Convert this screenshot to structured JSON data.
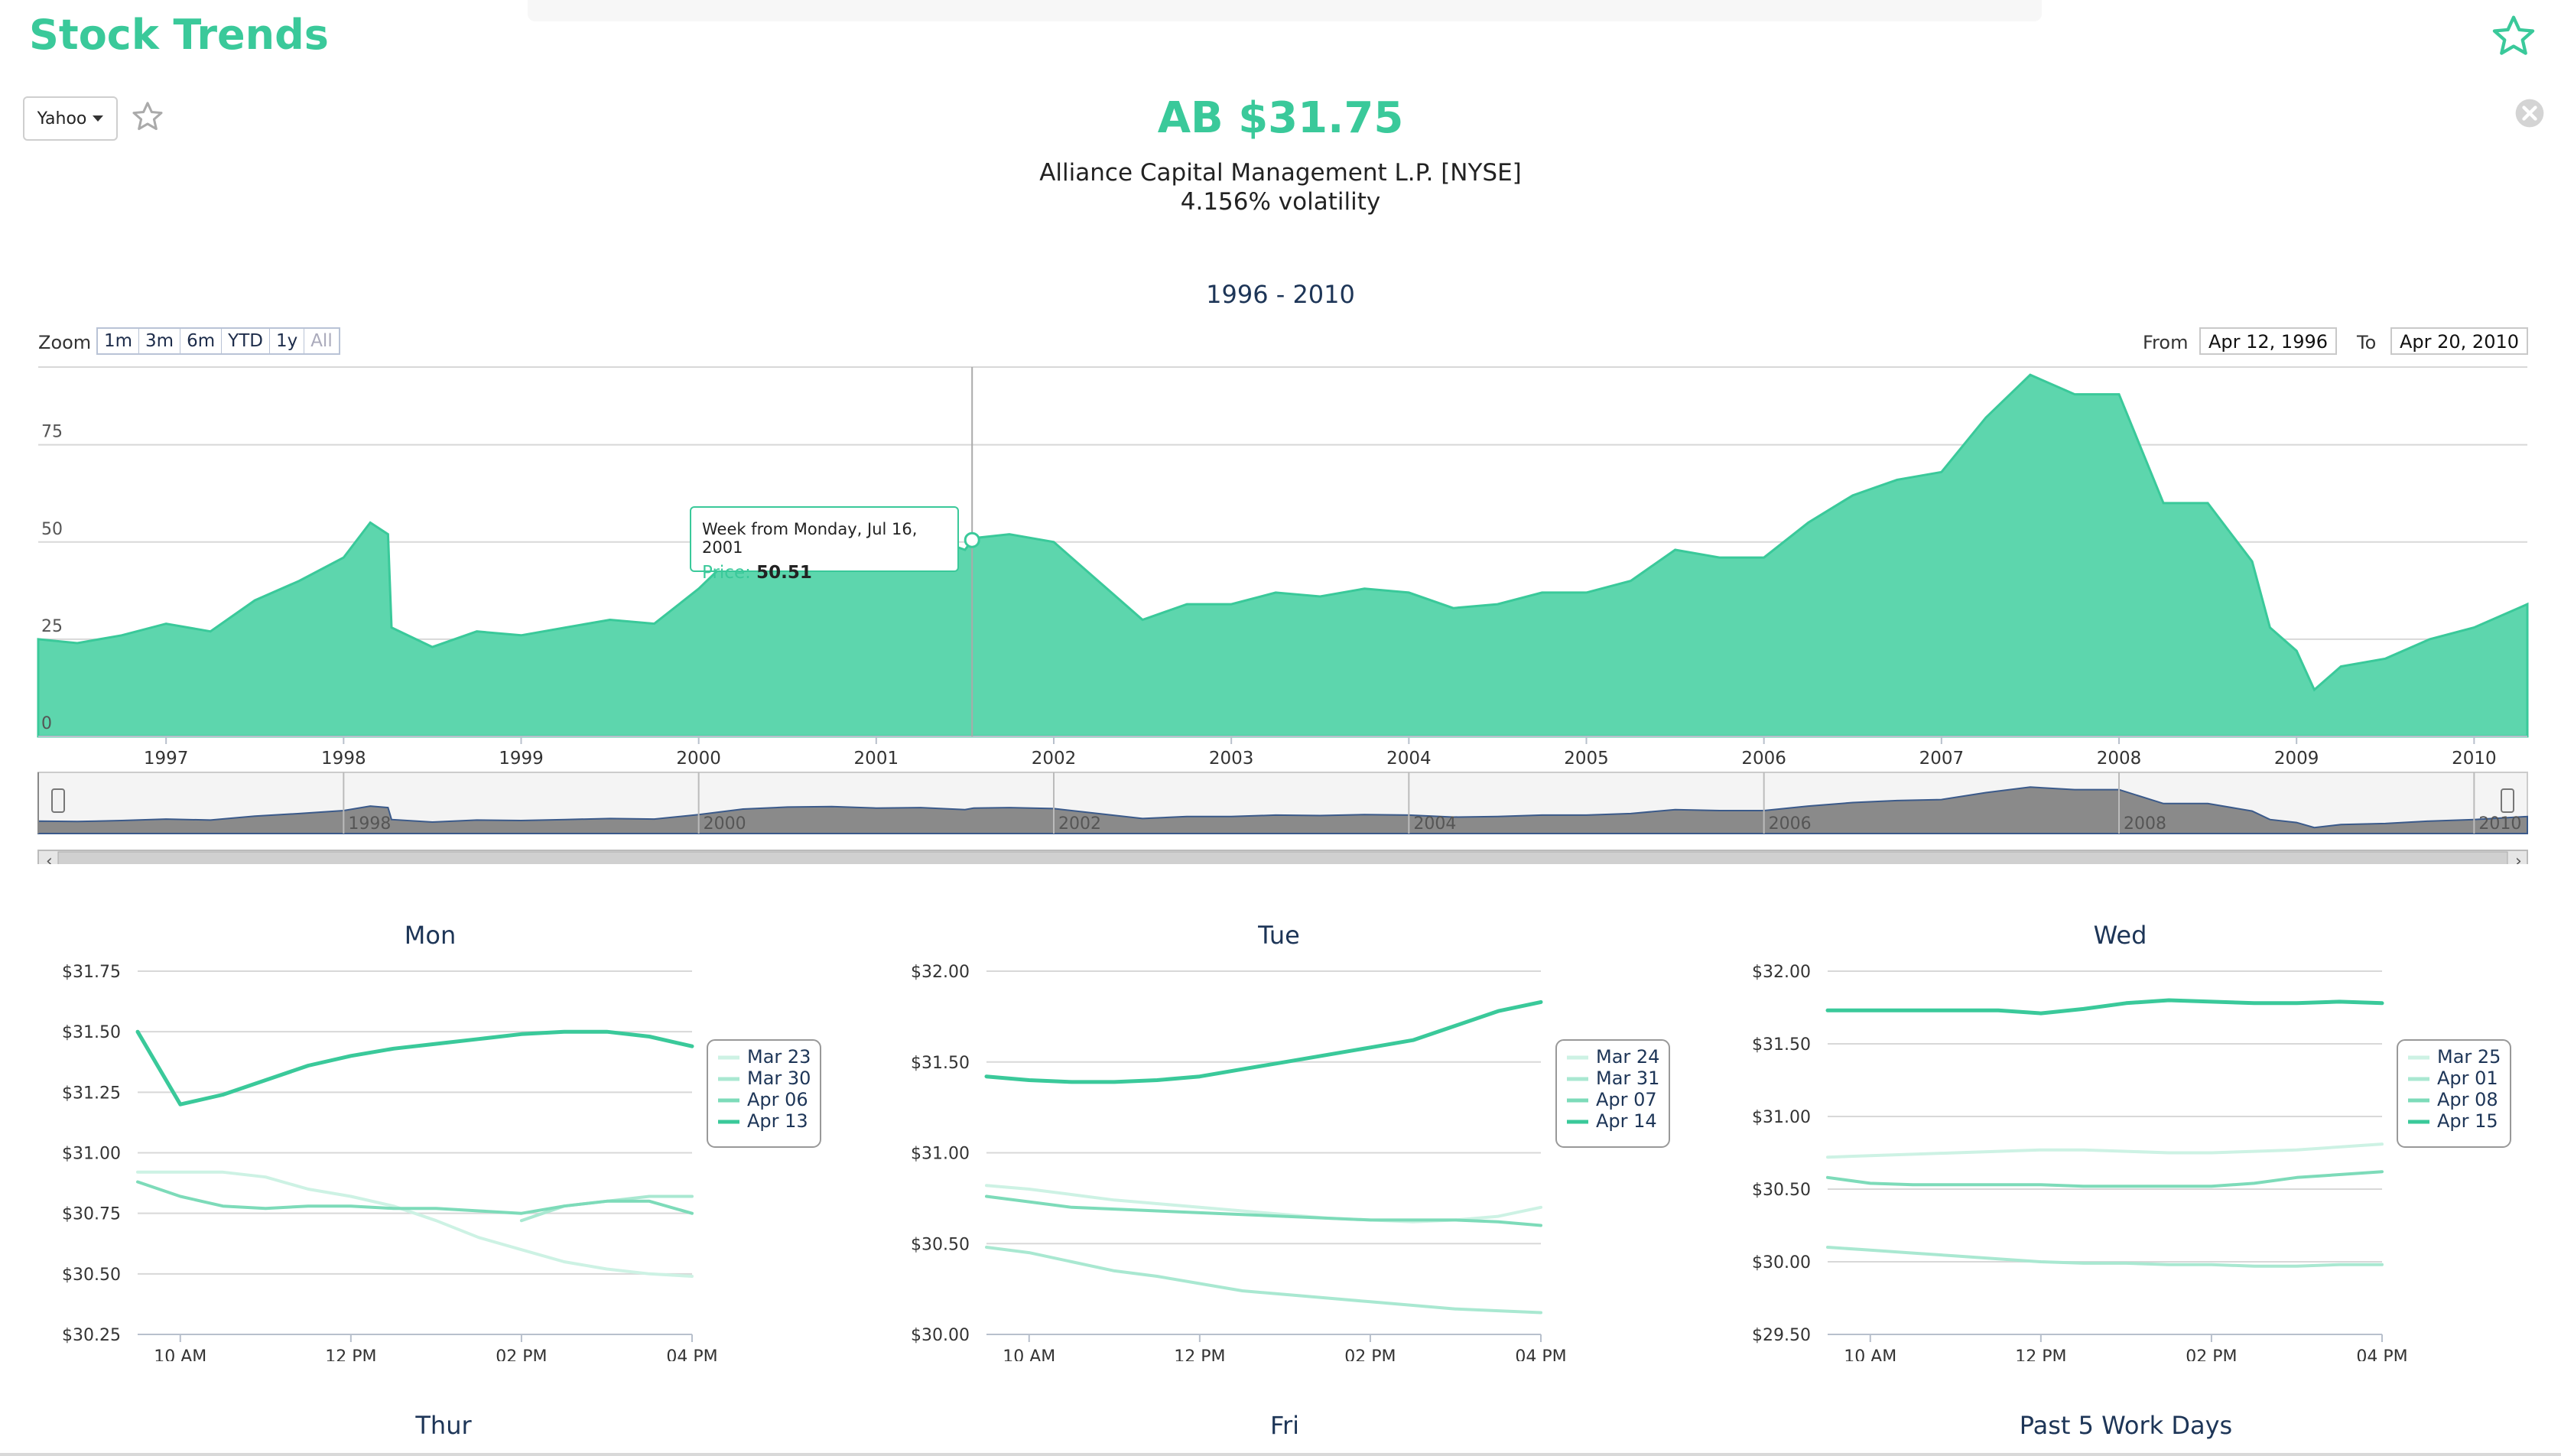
{
  "app": {
    "title": "Stock Trends"
  },
  "source_selector": {
    "label": "Yahoo"
  },
  "stock": {
    "headline": "AB $31.75",
    "name": "Alliance Capital Management L.P. [NYSE]",
    "volatility": "4.156% volatility"
  },
  "range_selector": {
    "zoom_label": "Zoom",
    "buttons": [
      "1m",
      "3m",
      "6m",
      "YTD",
      "1y",
      "All"
    ],
    "from_label": "From",
    "from_value": "Apr 12, 1996",
    "to_label": "To",
    "to_value": "Apr 20, 2010"
  },
  "tooltip": {
    "date": "Week from Monday, Jul 16, 2001",
    "price_label": "Price:",
    "price_value": "50.51"
  },
  "colors": {
    "accent": "#3ac99a",
    "area_fill": "#5dd6ad",
    "navigator_fill": "#8a8a8a",
    "navigator_line": "#3b5a8a"
  },
  "icons": {
    "favorite": "star-outline-icon",
    "close": "close-circle-icon",
    "dropdown": "caret-down-icon"
  },
  "chart_data": [
    {
      "type": "area",
      "title": "1996 - 2010",
      "x_ticks": [
        "1997",
        "1998",
        "1999",
        "2000",
        "2001",
        "2002",
        "2003",
        "2004",
        "2005",
        "2006",
        "2007",
        "2008",
        "2009",
        "2010"
      ],
      "y_ticks": [
        0,
        25,
        50,
        75
      ],
      "xlim": [
        1996.28,
        2010.3
      ],
      "ylim": [
        0,
        95
      ],
      "series": [
        {
          "x": [
            1996.28,
            1996.5,
            1996.75,
            1997.0,
            1997.25,
            1997.5,
            1997.75,
            1998.0,
            1998.15,
            1998.25,
            1998.27,
            1998.5,
            1998.75,
            1999.0,
            1999.25,
            1999.5,
            1999.75,
            2000.0,
            2000.25,
            2000.5,
            2000.75,
            2001.0,
            2001.25,
            2001.5,
            2001.55,
            2001.75,
            2002.0,
            2002.25,
            2002.5,
            2002.75,
            2003.0,
            2003.25,
            2003.5,
            2003.75,
            2004.0,
            2004.25,
            2004.5,
            2004.75,
            2005.0,
            2005.25,
            2005.5,
            2005.75,
            2006.0,
            2006.25,
            2006.5,
            2006.75,
            2007.0,
            2007.25,
            2007.5,
            2007.75,
            2008.0,
            2008.25,
            2008.5,
            2008.75,
            2008.85,
            2009.0,
            2009.1,
            2009.25,
            2009.5,
            2009.75,
            2010.0,
            2010.3
          ],
          "y": [
            25,
            24,
            26,
            29,
            27,
            35,
            40,
            46,
            55,
            52,
            28,
            23,
            27,
            26,
            28,
            30,
            29,
            38,
            49,
            53,
            54,
            51,
            52,
            48,
            51,
            52,
            50,
            40,
            30,
            34,
            34,
            37,
            36,
            38,
            37,
            33,
            34,
            37,
            37,
            40,
            48,
            46,
            46,
            55,
            62,
            66,
            68,
            82,
            93,
            88,
            88,
            60,
            60,
            45,
            28,
            22,
            12,
            18,
            20,
            25,
            28,
            34
          ]
        }
      ]
    },
    {
      "type": "area",
      "title": "",
      "role": "navigator",
      "x_ticks": [
        "1998",
        "2000",
        "2002",
        "2004",
        "2006",
        "2008",
        "2010"
      ],
      "xlim": [
        1996.28,
        2010.3
      ],
      "ylim": [
        0,
        95
      ]
    },
    {
      "type": "line",
      "title": "Mon",
      "x_ticks": [
        "10 AM",
        "12 PM",
        "02 PM",
        "04 PM"
      ],
      "x_range": [
        9.5,
        16.0
      ],
      "y_ticks": [
        "$31.75",
        "$31.50",
        "$31.25",
        "$31.00",
        "$30.75",
        "$30.50",
        "$30.25"
      ],
      "ylim": [
        30.25,
        31.75
      ],
      "x": [
        9.5,
        10,
        10.5,
        11,
        11.5,
        12,
        12.5,
        13,
        13.5,
        14,
        14.5,
        15,
        15.5,
        16
      ],
      "series": [
        {
          "name": "Mar 23",
          "values": [
            30.92,
            30.92,
            30.92,
            30.9,
            30.85,
            30.82,
            30.78,
            30.72,
            30.65,
            30.6,
            30.55,
            30.52,
            30.5,
            30.49
          ]
        },
        {
          "name": "Mar 30",
          "values": [
            null,
            null,
            null,
            null,
            null,
            null,
            null,
            null,
            null,
            30.72,
            30.78,
            30.8,
            30.82,
            30.82
          ]
        },
        {
          "name": "Apr 06",
          "values": [
            30.88,
            30.82,
            30.78,
            30.77,
            30.78,
            30.78,
            30.77,
            30.77,
            30.76,
            30.75,
            30.78,
            30.8,
            30.8,
            30.75
          ]
        },
        {
          "name": "Apr 13",
          "values": [
            31.5,
            31.2,
            31.24,
            31.3,
            31.36,
            31.4,
            31.43,
            31.45,
            31.47,
            31.49,
            31.5,
            31.5,
            31.48,
            31.44
          ]
        }
      ]
    },
    {
      "type": "line",
      "title": "Tue",
      "x_ticks": [
        "10 AM",
        "12 PM",
        "02 PM",
        "04 PM"
      ],
      "x_range": [
        9.5,
        16.0
      ],
      "y_ticks": [
        "$32.00",
        "$31.50",
        "$31.00",
        "$30.50",
        "$30.00"
      ],
      "ylim": [
        30.0,
        32.0
      ],
      "x": [
        9.5,
        10,
        10.5,
        11,
        11.5,
        12,
        12.5,
        13,
        13.5,
        14,
        14.5,
        15,
        15.5,
        16
      ],
      "series": [
        {
          "name": "Mar 24",
          "values": [
            30.82,
            30.8,
            30.77,
            30.74,
            30.72,
            30.7,
            30.68,
            30.66,
            30.64,
            30.63,
            30.62,
            30.63,
            30.65,
            30.7
          ]
        },
        {
          "name": "Mar 31",
          "values": [
            30.48,
            30.45,
            30.4,
            30.35,
            30.32,
            30.28,
            30.24,
            30.22,
            30.2,
            30.18,
            30.16,
            30.14,
            30.13,
            30.12
          ]
        },
        {
          "name": "Apr 07",
          "values": [
            30.76,
            30.73,
            30.7,
            30.69,
            30.68,
            30.67,
            30.66,
            30.65,
            30.64,
            30.63,
            30.63,
            30.63,
            30.62,
            30.6
          ]
        },
        {
          "name": "Apr 14",
          "values": [
            31.42,
            31.4,
            31.39,
            31.39,
            31.4,
            31.42,
            31.46,
            31.5,
            31.54,
            31.58,
            31.62,
            31.7,
            31.78,
            31.83
          ]
        }
      ]
    },
    {
      "type": "line",
      "title": "Wed",
      "x_ticks": [
        "10 AM",
        "12 PM",
        "02 PM",
        "04 PM"
      ],
      "x_range": [
        9.5,
        16.0
      ],
      "y_ticks": [
        "$32.00",
        "$31.50",
        "$31.00",
        "$30.50",
        "$30.00",
        "$29.50"
      ],
      "ylim": [
        29.5,
        32.0
      ],
      "x": [
        9.5,
        10,
        10.5,
        11,
        11.5,
        12,
        12.5,
        13,
        13.5,
        14,
        14.5,
        15,
        15.5,
        16
      ],
      "series": [
        {
          "name": "Mar 25",
          "values": [
            30.72,
            30.73,
            30.74,
            30.75,
            30.76,
            30.77,
            30.77,
            30.76,
            30.75,
            30.75,
            30.76,
            30.77,
            30.79,
            30.81
          ]
        },
        {
          "name": "Apr 01",
          "values": [
            30.1,
            30.08,
            30.06,
            30.04,
            30.02,
            30.0,
            29.99,
            29.99,
            29.98,
            29.98,
            29.97,
            29.97,
            29.98,
            29.98
          ]
        },
        {
          "name": "Apr 08",
          "values": [
            30.58,
            30.54,
            30.53,
            30.53,
            30.53,
            30.53,
            30.52,
            30.52,
            30.52,
            30.52,
            30.54,
            30.58,
            30.6,
            30.62
          ]
        },
        {
          "name": "Apr 15",
          "values": [
            31.73,
            31.73,
            31.73,
            31.73,
            31.73,
            31.71,
            31.74,
            31.78,
            31.8,
            31.79,
            31.78,
            31.78,
            31.79,
            31.78
          ]
        }
      ]
    }
  ],
  "bottom_sections": [
    "Thur",
    "Fri",
    "Past 5 Work Days"
  ]
}
